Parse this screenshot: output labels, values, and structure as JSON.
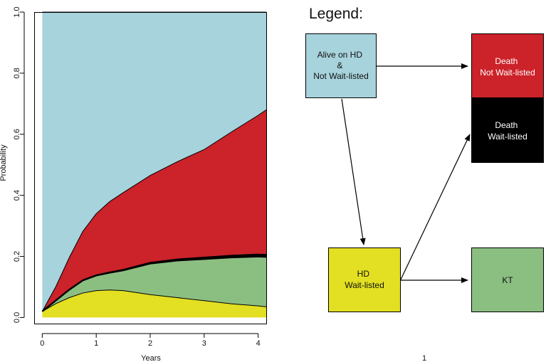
{
  "chart_data": {
    "type": "area",
    "stacked": true,
    "xlabel": "Years",
    "ylabel": "Probability",
    "xlim": [
      -0.15,
      4.15
    ],
    "ylim": [
      -0.02,
      1.0
    ],
    "x_ticks": [
      "0",
      "1",
      "2",
      "3",
      "4"
    ],
    "y_ticks": [
      "0.0",
      "0.2",
      "0.4",
      "0.6",
      "0.8",
      "1.0"
    ],
    "grid": false,
    "x": [
      0,
      0.25,
      0.5,
      0.75,
      1.0,
      1.25,
      1.5,
      2.0,
      2.5,
      3.0,
      3.5,
      4.0,
      4.15
    ],
    "series": [
      {
        "name": "HD Wait-listed",
        "color": "#e3df22",
        "values": [
          0.02,
          0.045,
          0.065,
          0.08,
          0.088,
          0.09,
          0.088,
          0.075,
          0.065,
          0.055,
          0.045,
          0.038,
          0.035
        ]
      },
      {
        "name": "KT",
        "color": "#8bbf82",
        "values": [
          0.0,
          0.01,
          0.025,
          0.04,
          0.048,
          0.055,
          0.065,
          0.1,
          0.12,
          0.135,
          0.15,
          0.16,
          0.162
        ]
      },
      {
        "name": "Death Wait-listed",
        "color": "#000000",
        "values": [
          0.0,
          0.0005,
          0.001,
          0.0015,
          0.002,
          0.0025,
          0.003,
          0.004,
          0.005,
          0.006,
          0.007,
          0.008,
          0.008
        ]
      },
      {
        "name": "Death Not Wait-listed",
        "color": "#cc2229",
        "values": [
          0.0,
          0.045,
          0.105,
          0.16,
          0.202,
          0.232,
          0.253,
          0.286,
          0.32,
          0.354,
          0.405,
          0.456,
          0.475
        ]
      },
      {
        "name": "Alive on HD & Not Wait-listed",
        "color": "#a7d3dd",
        "values": [
          0.98,
          0.8995,
          0.804,
          0.7185,
          0.66,
          0.6205,
          0.591,
          0.535,
          0.49,
          0.45,
          0.393,
          0.338,
          0.32
        ]
      }
    ],
    "footer": "1"
  },
  "legend": {
    "title": "Legend:",
    "boxes": {
      "alive": {
        "lines": [
          "Alive on HD",
          "&",
          "Not Wait-listed"
        ],
        "color": "#a7d3dd",
        "text_color": "#111111"
      },
      "death_not": {
        "lines": [
          "Death",
          "Not Wait-listed"
        ],
        "color": "#cc2229",
        "text_color": "#ffffff"
      },
      "death_wl": {
        "lines": [
          "Death",
          "Wait-listed"
        ],
        "color": "#000000",
        "text_color": "#ffffff"
      },
      "hd_wl": {
        "lines": [
          "HD",
          "Wait-listed"
        ],
        "color": "#e3df22",
        "text_color": "#111111"
      },
      "kt": {
        "lines": [
          "KT"
        ],
        "color": "#8bbf82",
        "text_color": "#111111"
      }
    }
  }
}
